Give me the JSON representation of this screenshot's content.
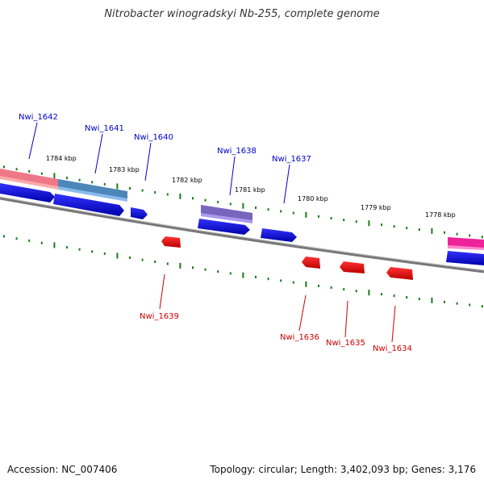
{
  "title": "Nitrobacter winogradskyi Nb-255, complete genome",
  "footer": {
    "accession": "Accession: NC_007406",
    "topology": "Topology: circular; Length: 3,402,093 bp; Genes: 3,176"
  },
  "colors": {
    "forward_gene": "#0000ee",
    "reverse_gene": "#ee0000",
    "forward_label": "#0000cc",
    "reverse_label": "#cc0000",
    "tick": "#1a7a1a",
    "genome_line": "#777777",
    "feature_pink": "#ee7788",
    "feature_steelblue": "#4d86b8",
    "feature_purple": "#7766bb",
    "feature_magenta": "#ee2299"
  },
  "kbp_labels": [
    "1784 kbp",
    "1783 kbp",
    "1782 kbp",
    "1781 kbp",
    "1780 kbp",
    "1779 kbp",
    "1778 kbp"
  ],
  "forward_genes": [
    "Nwi_1642",
    "Nwi_1641",
    "Nwi_1640",
    "Nwi_1638",
    "Nwi_1637"
  ],
  "reverse_genes": [
    "Nwi_1639",
    "Nwi_1636",
    "Nwi_1635",
    "Nwi_1634"
  ]
}
